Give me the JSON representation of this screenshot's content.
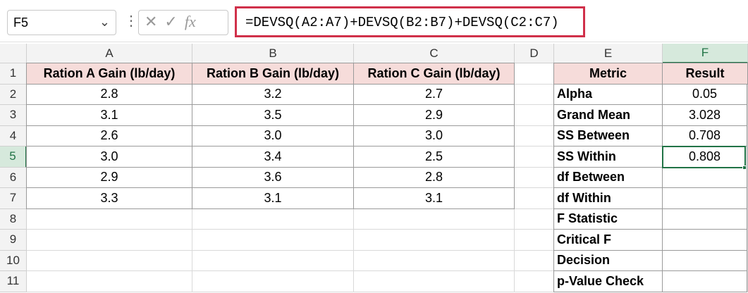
{
  "name_box": "F5",
  "formula": "=DEVSQ(A2:A7)+DEVSQ(B2:B7)+DEVSQ(C2:C7)",
  "columns": [
    "A",
    "B",
    "C",
    "D",
    "E",
    "F"
  ],
  "row_numbers": [
    1,
    2,
    3,
    4,
    5,
    6,
    7,
    8,
    9,
    10,
    11
  ],
  "data_table": {
    "header": [
      "Ration A Gain (lb/day)",
      "Ration B Gain (lb/day)",
      "Ration C Gain (lb/day)"
    ],
    "rows": [
      [
        "2.8",
        "3.2",
        "2.7"
      ],
      [
        "3.1",
        "3.5",
        "2.9"
      ],
      [
        "2.6",
        "3.0",
        "3.0"
      ],
      [
        "3.0",
        "3.4",
        "2.5"
      ],
      [
        "2.9",
        "3.6",
        "2.8"
      ],
      [
        "3.3",
        "3.1",
        "3.1"
      ]
    ]
  },
  "metrics_table": {
    "header": [
      "Metric",
      "Result"
    ],
    "rows": [
      [
        "Alpha",
        "0.05"
      ],
      [
        "Grand Mean",
        "3.028"
      ],
      [
        "SS Between",
        "0.708"
      ],
      [
        "SS Within",
        "0.808"
      ],
      [
        "df Between"
      ],
      [
        "df Within"
      ],
      [
        "F Statistic"
      ],
      [
        "Critical F"
      ],
      [
        "Decision"
      ],
      [
        "p-Value Check"
      ]
    ]
  }
}
